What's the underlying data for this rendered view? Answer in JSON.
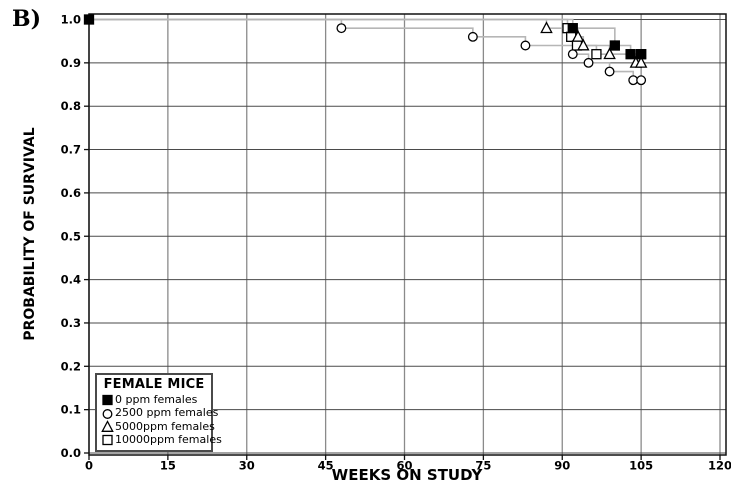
{
  "panel_label": "B)",
  "chart_data": {
    "type": "line",
    "variant": "kaplan-meier-step",
    "title": "",
    "xlabel": "WEEKS ON STUDY",
    "ylabel": "PROBABILITY OF SURVIVAL",
    "xlim": [
      0,
      120
    ],
    "ylim": [
      0.0,
      1.0
    ],
    "xticks": [
      0,
      15,
      30,
      45,
      60,
      75,
      90,
      105,
      120
    ],
    "ytick_labels": [
      "0.0",
      "0.1",
      "0.2",
      "0.3",
      "0.4",
      "0.5",
      "0.6",
      "0.7",
      "0.8",
      "0.9",
      "1.0"
    ],
    "grid": true,
    "line_color": "#b6b6b6",
    "marker_edge_color": "#000000",
    "legend": {
      "title": "FEMALE MICE",
      "position": "lower-left"
    },
    "series": [
      {
        "name": "0 ppm females",
        "marker": "filled-square",
        "start": [
          0,
          1.0
        ],
        "points": [
          [
            0,
            1.0
          ],
          [
            92,
            0.98
          ],
          [
            100,
            0.94
          ],
          [
            103,
            0.92
          ],
          [
            105,
            0.92
          ]
        ]
      },
      {
        "name": "2500 ppm females",
        "marker": "open-circle",
        "start": [
          0,
          1.0
        ],
        "points": [
          [
            48,
            0.98
          ],
          [
            73,
            0.96
          ],
          [
            83,
            0.94
          ],
          [
            92,
            0.92
          ],
          [
            95,
            0.9
          ],
          [
            99,
            0.88
          ],
          [
            103.5,
            0.86
          ],
          [
            105,
            0.86
          ]
        ]
      },
      {
        "name": "5000ppm females",
        "marker": "open-triangle",
        "start": [
          0,
          1.0
        ],
        "points": [
          [
            87,
            0.98
          ],
          [
            93,
            0.96
          ],
          [
            94,
            0.94
          ],
          [
            99,
            0.92
          ],
          [
            104,
            0.9
          ],
          [
            105,
            0.9
          ]
        ]
      },
      {
        "name": "10000ppm females",
        "marker": "open-square",
        "start": [
          0,
          1.0
        ],
        "points": [
          [
            91,
            0.98
          ],
          [
            91.7,
            0.96
          ],
          [
            92.8,
            0.94
          ],
          [
            96.5,
            0.92
          ],
          [
            105,
            0.92
          ]
        ]
      }
    ]
  }
}
